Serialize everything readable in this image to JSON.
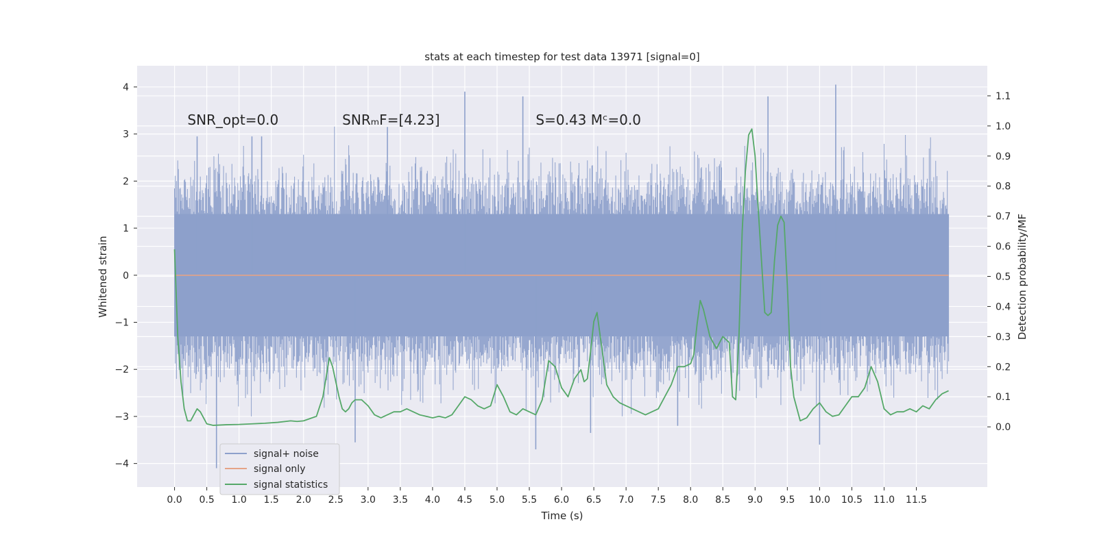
{
  "chart_data": {
    "type": "line",
    "title": "stats at each timestep for test data 13971 [signal=0]",
    "xlabel": "Time (s)",
    "ylabel_left": "Whitened strain",
    "ylabel_right": "Detection probability/MF",
    "xlim": [
      -0.58,
      12.6
    ],
    "ylim_left": [
      -4.5,
      4.45
    ],
    "ylim_right": [
      -0.2,
      1.2
    ],
    "x_ticks": [
      "0.0",
      "0.5",
      "1.0",
      "1.5",
      "2.0",
      "2.5",
      "3.0",
      "3.5",
      "4.0",
      "4.5",
      "5.0",
      "5.5",
      "6.0",
      "6.5",
      "7.0",
      "7.5",
      "8.0",
      "8.5",
      "9.0",
      "9.5",
      "10.0",
      "10.5",
      "11.0",
      "11.5"
    ],
    "y_ticks_left": [
      "4",
      "3",
      "2",
      "1",
      "0",
      "−1",
      "−2",
      "−3",
      "−4"
    ],
    "y_ticks_right": [
      "1.1",
      "1.0",
      "0.9",
      "0.8",
      "0.7",
      "0.6",
      "0.5",
      "0.4",
      "0.3",
      "0.2",
      "0.1",
      "0.0"
    ],
    "grid": true,
    "legend_position": "lower-left",
    "annotations": [
      {
        "text": "SNR_opt=0.0",
        "x": 0.2,
        "y": 3.3
      },
      {
        "text": "SNRₘF=[4.23]",
        "x": 2.6,
        "y": 3.3
      },
      {
        "text": "S=0.43   Mᶜ=0.0",
        "x": 5.6,
        "y": 3.3
      }
    ],
    "series": [
      {
        "name": "signal+ noise",
        "axis": "left",
        "color": "#8da0cb",
        "style": "dense noise band",
        "x_range": [
          0.0,
          12.0
        ],
        "band": [
          -1.3,
          1.3
        ],
        "peak_values": [
          {
            "x": 0.35,
            "y": 2.95
          },
          {
            "x": 0.65,
            "y": -4.1
          },
          {
            "x": 1.2,
            "y": 2.95
          },
          {
            "x": 1.35,
            "y": 2.95
          },
          {
            "x": 2.8,
            "y": -3.55
          },
          {
            "x": 3.3,
            "y": 3.15
          },
          {
            "x": 4.5,
            "y": 3.9
          },
          {
            "x": 5.4,
            "y": 3.8
          },
          {
            "x": 5.6,
            "y": -3.7
          },
          {
            "x": 6.45,
            "y": -3.35
          },
          {
            "x": 7.8,
            "y": -3.2
          },
          {
            "x": 9.2,
            "y": 3.8
          },
          {
            "x": 10.0,
            "y": -3.6
          },
          {
            "x": 10.25,
            "y": 4.05
          }
        ]
      },
      {
        "name": "signal only",
        "axis": "left",
        "color": "#e5a386",
        "x": [
          0.0,
          12.0
        ],
        "y": [
          0.0,
          0.0
        ]
      },
      {
        "name": "signal statistics",
        "axis": "right",
        "color": "#55a868",
        "x": [
          0.0,
          0.05,
          0.1,
          0.15,
          0.2,
          0.25,
          0.3,
          0.35,
          0.4,
          0.45,
          0.5,
          0.6,
          0.8,
          1.0,
          1.2,
          1.4,
          1.6,
          1.8,
          1.9,
          2.0,
          2.2,
          2.3,
          2.4,
          2.45,
          2.5,
          2.55,
          2.6,
          2.65,
          2.7,
          2.75,
          2.8,
          2.9,
          3.0,
          3.1,
          3.2,
          3.3,
          3.4,
          3.5,
          3.6,
          3.7,
          3.8,
          3.9,
          4.0,
          4.1,
          4.2,
          4.3,
          4.4,
          4.5,
          4.6,
          4.7,
          4.8,
          4.9,
          5.0,
          5.1,
          5.2,
          5.3,
          5.4,
          5.5,
          5.6,
          5.7,
          5.8,
          5.9,
          6.0,
          6.1,
          6.2,
          6.3,
          6.35,
          6.4,
          6.45,
          6.5,
          6.55,
          6.6,
          6.7,
          6.8,
          6.9,
          7.0,
          7.1,
          7.2,
          7.3,
          7.4,
          7.5,
          7.6,
          7.7,
          7.8,
          7.9,
          8.0,
          8.05,
          8.1,
          8.15,
          8.2,
          8.3,
          8.4,
          8.5,
          8.6,
          8.65,
          8.7,
          8.75,
          8.8,
          8.85,
          8.9,
          8.95,
          9.0,
          9.05,
          9.1,
          9.15,
          9.2,
          9.25,
          9.3,
          9.35,
          9.4,
          9.45,
          9.5,
          9.55,
          9.6,
          9.7,
          9.8,
          9.9,
          10.0,
          10.1,
          10.2,
          10.3,
          10.4,
          10.5,
          10.6,
          10.7,
          10.8,
          10.9,
          11.0,
          11.1,
          11.2,
          11.3,
          11.4,
          11.5,
          11.6,
          11.7,
          11.8,
          11.9,
          12.0
        ],
        "y": [
          0.59,
          0.3,
          0.15,
          0.06,
          0.02,
          0.02,
          0.04,
          0.06,
          0.05,
          0.03,
          0.01,
          0.005,
          0.007,
          0.008,
          0.01,
          0.012,
          0.015,
          0.02,
          0.018,
          0.02,
          0.035,
          0.1,
          0.23,
          0.2,
          0.15,
          0.1,
          0.06,
          0.05,
          0.06,
          0.08,
          0.09,
          0.09,
          0.07,
          0.04,
          0.03,
          0.04,
          0.05,
          0.05,
          0.06,
          0.05,
          0.04,
          0.035,
          0.03,
          0.035,
          0.03,
          0.04,
          0.07,
          0.1,
          0.09,
          0.07,
          0.06,
          0.07,
          0.14,
          0.1,
          0.05,
          0.04,
          0.06,
          0.05,
          0.04,
          0.09,
          0.22,
          0.2,
          0.13,
          0.1,
          0.16,
          0.19,
          0.15,
          0.16,
          0.25,
          0.35,
          0.38,
          0.3,
          0.14,
          0.1,
          0.08,
          0.07,
          0.06,
          0.05,
          0.04,
          0.05,
          0.06,
          0.1,
          0.14,
          0.2,
          0.2,
          0.21,
          0.24,
          0.34,
          0.42,
          0.39,
          0.3,
          0.26,
          0.3,
          0.28,
          0.1,
          0.09,
          0.3,
          0.65,
          0.85,
          0.97,
          0.99,
          0.9,
          0.72,
          0.55,
          0.38,
          0.37,
          0.38,
          0.55,
          0.67,
          0.7,
          0.68,
          0.47,
          0.2,
          0.1,
          0.02,
          0.03,
          0.06,
          0.08,
          0.05,
          0.035,
          0.04,
          0.07,
          0.1,
          0.1,
          0.13,
          0.2,
          0.15,
          0.06,
          0.04,
          0.05,
          0.05,
          0.06,
          0.05,
          0.07,
          0.06,
          0.09,
          0.11,
          0.12
        ]
      }
    ]
  }
}
